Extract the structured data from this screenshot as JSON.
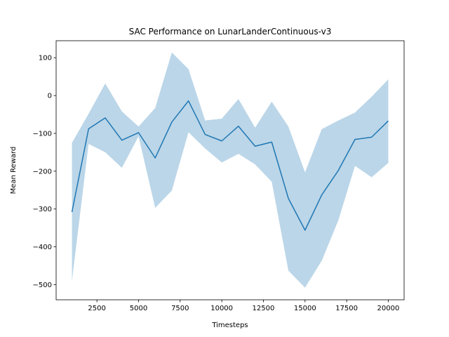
{
  "chart_data": {
    "type": "line",
    "title": "SAC Performance on LunarLanderContinuous-v3",
    "xlabel": "Timesteps",
    "ylabel": "Mean Reward",
    "xlim": [
      50,
      20950
    ],
    "ylim": [
      -540,
      145
    ],
    "xticks": [
      2500,
      5000,
      7500,
      10000,
      12500,
      15000,
      17500,
      20000
    ],
    "xtick_labels": [
      "2500",
      "5000",
      "7500",
      "10000",
      "12500",
      "15000",
      "17500",
      "20000"
    ],
    "yticks": [
      100,
      0,
      -100,
      -200,
      -300,
      -400,
      -500
    ],
    "ytick_labels": [
      "100",
      "0",
      "−100",
      "−200",
      "−300",
      "−400",
      "−500"
    ],
    "grid": false,
    "line_color": "#1f77b4",
    "band_color": "#1f77b4",
    "band_opacity": 0.3,
    "series": [
      {
        "x": [
          1000,
          2000,
          3000,
          4000,
          5000,
          6000,
          7000,
          8000,
          9000,
          10000,
          11000,
          12000,
          13000,
          14000,
          15000,
          16000,
          17000,
          18000,
          19000,
          20000
        ],
        "mean": [
          -308,
          -88,
          -59,
          -118,
          -98,
          -165,
          -70,
          -14,
          -103,
          -120,
          -81,
          -134,
          -123,
          -272,
          -356,
          -263,
          -198,
          -116,
          -110,
          -67
        ],
        "upper": [
          -125,
          -48,
          32,
          -42,
          -82,
          -33,
          114,
          70,
          -66,
          -61,
          -9,
          -85,
          -16,
          -82,
          -203,
          -89,
          -66,
          -45,
          -3,
          43
        ],
        "lower": [
          -490,
          -128,
          -150,
          -191,
          -108,
          -297,
          -251,
          -97,
          -140,
          -177,
          -154,
          -182,
          -228,
          -463,
          -508,
          -437,
          -330,
          -186,
          -216,
          -178
        ]
      }
    ]
  }
}
